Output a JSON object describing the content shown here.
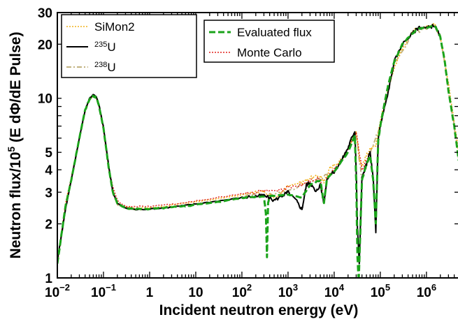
{
  "chart_data": {
    "type": "line",
    "xlabel": "Incident neutron energy (eV)",
    "ylabel": "Neutron flux/10^5 (E dΦ/dE Pulse)",
    "ylabel_prefix": "Neutron flux/10",
    "ylabel_exp": "5",
    "ylabel_suffix": " (E dΦ/dE Pulse)",
    "xscale": "log",
    "yscale": "log",
    "xlim": [
      0.01,
      5000000
    ],
    "ylim": [
      1,
      30
    ],
    "grid": false,
    "x_ticks": [
      {
        "base": "10",
        "exp": "−2",
        "value": 0.01
      },
      {
        "base": "10",
        "exp": "−1",
        "value": 0.1
      },
      {
        "text": "1",
        "value": 1
      },
      {
        "text": "10",
        "value": 10
      },
      {
        "base": "10",
        "exp": "2",
        "value": 100
      },
      {
        "base": "10",
        "exp": "3",
        "value": 1000
      },
      {
        "base": "10",
        "exp": "4",
        "value": 10000
      },
      {
        "base": "10",
        "exp": "5",
        "value": 100000
      },
      {
        "base": "10",
        "exp": "6",
        "value": 1000000
      }
    ],
    "y_ticks": [
      {
        "text": "1",
        "value": 1
      },
      {
        "text": "2",
        "value": 2
      },
      {
        "text": "3",
        "value": 3
      },
      {
        "text": "4",
        "value": 4
      },
      {
        "text": "5",
        "value": 5
      },
      {
        "text": "10",
        "value": 10
      },
      {
        "text": "20",
        "value": 20
      },
      {
        "text": "30",
        "value": 30
      }
    ],
    "legend_left": [
      {
        "label": "SiMon2",
        "series": 0
      },
      {
        "label": "235U",
        "sup": "235",
        "base": "U",
        "series": 1
      },
      {
        "label": "238U",
        "sup": "238",
        "base": "U",
        "series": 2
      }
    ],
    "legend_right": [
      {
        "label": "Evaluated flux",
        "series": 3
      },
      {
        "label": "Monte Carlo",
        "series": 4
      }
    ],
    "series": [
      {
        "name": "SiMon2",
        "color": "#f2b21b",
        "dash": "2,2",
        "width": 1.6,
        "points": [
          [
            0.01,
            1.2
          ],
          [
            0.015,
            2.6
          ],
          [
            0.02,
            3.6
          ],
          [
            0.03,
            6
          ],
          [
            0.04,
            8.5
          ],
          [
            0.05,
            9.9
          ],
          [
            0.06,
            10.4
          ],
          [
            0.07,
            10.1
          ],
          [
            0.08,
            9.1
          ],
          [
            0.1,
            6.8
          ],
          [
            0.13,
            4.1
          ],
          [
            0.16,
            3
          ],
          [
            0.2,
            2.6
          ],
          [
            0.3,
            2.5
          ],
          [
            0.5,
            2.45
          ],
          [
            1,
            2.45
          ],
          [
            2,
            2.5
          ],
          [
            5,
            2.6
          ],
          [
            10,
            2.65
          ],
          [
            30,
            2.75
          ],
          [
            100,
            2.9
          ],
          [
            200,
            3
          ],
          [
            300,
            3.05
          ],
          [
            500,
            2.75
          ],
          [
            800,
            3.05
          ],
          [
            1000,
            3.3
          ],
          [
            2000,
            3.4
          ],
          [
            3000,
            3.6
          ],
          [
            5000,
            3.7
          ],
          [
            6000,
            3.4
          ],
          [
            8000,
            4.1
          ],
          [
            10000,
            4.2
          ],
          [
            15000,
            4.6
          ],
          [
            20000,
            5.2
          ],
          [
            25000,
            6
          ],
          [
            30000,
            6.6
          ],
          [
            35000,
            4.6
          ],
          [
            40000,
            4.2
          ],
          [
            50000,
            4.8
          ],
          [
            60000,
            5.2
          ],
          [
            80000,
            5.4
          ],
          [
            100000,
            7.5
          ],
          [
            200000,
            15
          ],
          [
            300000,
            19
          ],
          [
            500000,
            24
          ],
          [
            700000,
            24.5
          ],
          [
            1000000,
            25
          ],
          [
            1500000,
            26
          ],
          [
            2000000,
            22
          ],
          [
            3000000,
            12
          ],
          [
            5000000,
            5
          ]
        ]
      },
      {
        "name": "235U",
        "color": "#000000",
        "dash": "",
        "width": 2,
        "points": [
          [
            0.01,
            1.25
          ],
          [
            0.015,
            2.4
          ],
          [
            0.02,
            3.5
          ],
          [
            0.03,
            6
          ],
          [
            0.04,
            8.6
          ],
          [
            0.05,
            10
          ],
          [
            0.06,
            10.5
          ],
          [
            0.07,
            10.2
          ],
          [
            0.08,
            9.2
          ],
          [
            0.1,
            6.9
          ],
          [
            0.13,
            4.2
          ],
          [
            0.16,
            3
          ],
          [
            0.2,
            2.6
          ],
          [
            0.3,
            2.45
          ],
          [
            0.5,
            2.4
          ],
          [
            1,
            2.42
          ],
          [
            2,
            2.45
          ],
          [
            5,
            2.52
          ],
          [
            10,
            2.58
          ],
          [
            30,
            2.68
          ],
          [
            100,
            2.8
          ],
          [
            200,
            2.85
          ],
          [
            300,
            2.88
          ],
          [
            500,
            2.7
          ],
          [
            800,
            2.9
          ],
          [
            1000,
            3
          ],
          [
            1500,
            2.7
          ],
          [
            2000,
            2.4
          ],
          [
            2500,
            3.3
          ],
          [
            3000,
            3.4
          ],
          [
            4000,
            3
          ],
          [
            5000,
            3.3
          ],
          [
            6000,
            2.6
          ],
          [
            7000,
            3.6
          ],
          [
            10000,
            3.9
          ],
          [
            15000,
            4.6
          ],
          [
            20000,
            5.3
          ],
          [
            25000,
            6.2
          ],
          [
            28000,
            6.5
          ],
          [
            30000,
            4
          ],
          [
            32000,
            1.9
          ],
          [
            35000,
            1.2
          ],
          [
            40000,
            3.6
          ],
          [
            50000,
            4.3
          ],
          [
            60000,
            5
          ],
          [
            70000,
            3.6
          ],
          [
            80000,
            1.8
          ],
          [
            90000,
            6
          ],
          [
            100000,
            7
          ],
          [
            150000,
            11
          ],
          [
            200000,
            16
          ],
          [
            300000,
            20
          ],
          [
            500000,
            23
          ],
          [
            700000,
            25
          ],
          [
            1000000,
            24.5
          ],
          [
            1500000,
            25.5
          ],
          [
            2000000,
            22
          ]
        ]
      },
      {
        "name": "238U",
        "color": "#c2b280",
        "dash": "7,3,2,3",
        "width": 2,
        "points": [
          [
            0.01,
            1.2
          ],
          [
            0.015,
            2.4
          ],
          [
            0.02,
            3.5
          ],
          [
            0.03,
            5.9
          ],
          [
            0.04,
            8.4
          ],
          [
            0.05,
            9.8
          ],
          [
            0.06,
            10.3
          ],
          [
            0.07,
            10
          ],
          [
            0.08,
            9
          ],
          [
            0.1,
            6.7
          ],
          [
            0.13,
            4.1
          ],
          [
            0.16,
            2.95
          ],
          [
            0.2,
            2.55
          ],
          [
            0.3,
            2.45
          ],
          [
            0.5,
            2.4
          ],
          [
            1,
            2.42
          ],
          [
            2,
            2.45
          ],
          [
            5,
            2.52
          ],
          [
            10,
            2.58
          ],
          [
            30,
            2.68
          ],
          [
            100,
            2.82
          ],
          [
            300,
            2.9
          ],
          [
            1000,
            3
          ],
          [
            3000,
            3.4
          ],
          [
            10000,
            3.9
          ],
          [
            20000,
            5.2
          ],
          [
            30000,
            6.4
          ],
          [
            40000,
            3.5
          ],
          [
            60000,
            4.9
          ],
          [
            100000,
            7
          ],
          [
            200000,
            15.5
          ],
          [
            500000,
            23
          ],
          [
            1000000,
            24.5
          ],
          [
            1500000,
            25.5
          ],
          [
            2000000,
            22
          ],
          [
            2500000,
            16
          ],
          [
            3000000,
            11
          ],
          [
            4000000,
            7
          ],
          [
            5000000,
            4.5
          ]
        ]
      },
      {
        "name": "Evaluated flux",
        "color": "#1aa31a",
        "dash": "9,4",
        "width": 3,
        "points": [
          [
            0.01,
            1.2
          ],
          [
            0.015,
            2.5
          ],
          [
            0.02,
            3.5
          ],
          [
            0.03,
            6
          ],
          [
            0.04,
            8.6
          ],
          [
            0.05,
            9.9
          ],
          [
            0.06,
            10.3
          ],
          [
            0.07,
            10.1
          ],
          [
            0.08,
            9.1
          ],
          [
            0.1,
            6.8
          ],
          [
            0.13,
            4.1
          ],
          [
            0.16,
            3
          ],
          [
            0.2,
            2.6
          ],
          [
            0.3,
            2.45
          ],
          [
            0.5,
            2.42
          ],
          [
            1,
            2.42
          ],
          [
            2,
            2.45
          ],
          [
            5,
            2.5
          ],
          [
            10,
            2.55
          ],
          [
            30,
            2.65
          ],
          [
            100,
            2.78
          ],
          [
            200,
            2.83
          ],
          [
            300,
            2.85
          ],
          [
            330,
            2.3
          ],
          [
            350,
            1.3
          ],
          [
            370,
            2.6
          ],
          [
            400,
            2.87
          ],
          [
            1000,
            2.9
          ],
          [
            2000,
            2.8
          ],
          [
            3000,
            3.3
          ],
          [
            5000,
            3.5
          ],
          [
            6000,
            2.6
          ],
          [
            7000,
            3.6
          ],
          [
            10000,
            3.9
          ],
          [
            20000,
            5
          ],
          [
            28000,
            6.2
          ],
          [
            30000,
            3.5
          ],
          [
            32000,
            1.3
          ],
          [
            34000,
            0.95
          ],
          [
            36000,
            1.5
          ],
          [
            40000,
            3.5
          ],
          [
            50000,
            4.3
          ],
          [
            60000,
            4.8
          ],
          [
            70000,
            3.5
          ],
          [
            80000,
            2
          ],
          [
            90000,
            5.8
          ],
          [
            100000,
            7
          ],
          [
            130000,
            10
          ],
          [
            150000,
            12
          ],
          [
            200000,
            16
          ],
          [
            300000,
            20
          ],
          [
            500000,
            23
          ],
          [
            700000,
            24.5
          ],
          [
            1000000,
            24.5
          ],
          [
            1500000,
            25.5
          ],
          [
            2000000,
            22
          ],
          [
            2500000,
            16
          ],
          [
            3000000,
            11
          ],
          [
            4000000,
            7
          ],
          [
            5000000,
            4.5
          ]
        ]
      },
      {
        "name": "Monte Carlo",
        "color": "#e0201b",
        "dash": "2,2",
        "width": 1.4,
        "points": [
          [
            0.01,
            1.25
          ],
          [
            0.015,
            2.5
          ],
          [
            0.02,
            3.6
          ],
          [
            0.03,
            6
          ],
          [
            0.04,
            8.6
          ],
          [
            0.05,
            9.9
          ],
          [
            0.06,
            10.4
          ],
          [
            0.07,
            10.1
          ],
          [
            0.08,
            9.1
          ],
          [
            0.1,
            6.8
          ],
          [
            0.13,
            4.1
          ],
          [
            0.16,
            3.2
          ],
          [
            0.2,
            2.7
          ],
          [
            0.3,
            2.5
          ],
          [
            0.5,
            2.5
          ],
          [
            1,
            2.5
          ],
          [
            2,
            2.55
          ],
          [
            5,
            2.6
          ],
          [
            10,
            2.68
          ],
          [
            30,
            2.8
          ],
          [
            100,
            2.95
          ],
          [
            200,
            3
          ],
          [
            300,
            3.05
          ],
          [
            500,
            3
          ],
          [
            800,
            3.1
          ],
          [
            1000,
            3.2
          ],
          [
            2000,
            3.3
          ],
          [
            3000,
            3.5
          ],
          [
            5000,
            3.6
          ],
          [
            6000,
            2.7
          ],
          [
            7000,
            3.7
          ],
          [
            10000,
            4
          ],
          [
            20000,
            5.2
          ],
          [
            30000,
            6.5
          ],
          [
            40000,
            4
          ],
          [
            60000,
            5
          ]
        ]
      }
    ]
  }
}
